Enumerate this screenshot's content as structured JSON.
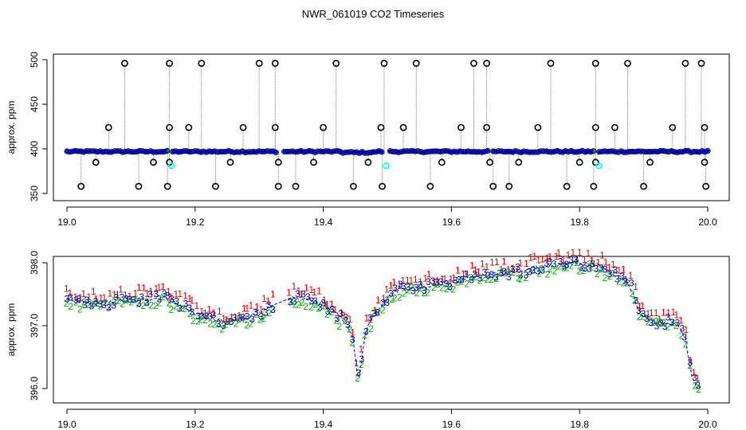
{
  "title": "NWR_061019  CO2 Timeseries",
  "chart_data": [
    {
      "type": "scatter",
      "ylabel": "approx. ppm",
      "xlim": [
        19.0,
        20.0
      ],
      "ylim": [
        345,
        500
      ],
      "xticks": [
        "19.0",
        "19.2",
        "19.4",
        "19.6",
        "19.8",
        "20.0"
      ],
      "yticks": [
        "350",
        "400",
        "450",
        "500"
      ],
      "colors": {
        "baseline": "#0000ff",
        "outline": "#000000",
        "flag": "#00ffff",
        "drop": "#909090",
        "mid": "#00a000"
      },
      "baseline_level": 397,
      "high_points": [
        [
          19.09,
          496
        ],
        [
          19.16,
          496
        ],
        [
          19.21,
          496
        ],
        [
          19.3,
          496
        ],
        [
          19.325,
          496
        ],
        [
          19.42,
          496
        ],
        [
          19.495,
          496
        ],
        [
          19.545,
          496
        ],
        [
          19.635,
          496
        ],
        [
          19.655,
          496
        ],
        [
          19.755,
          496
        ],
        [
          19.825,
          496
        ],
        [
          19.875,
          496
        ],
        [
          19.965,
          496
        ],
        [
          19.99,
          496
        ],
        [
          19.065,
          424
        ],
        [
          19.16,
          424
        ],
        [
          19.19,
          424
        ],
        [
          19.275,
          424
        ],
        [
          19.325,
          424
        ],
        [
          19.4,
          424
        ],
        [
          19.49,
          424
        ],
        [
          19.525,
          424
        ],
        [
          19.615,
          424
        ],
        [
          19.655,
          424
        ],
        [
          19.735,
          424
        ],
        [
          19.825,
          424
        ],
        [
          19.855,
          424
        ],
        [
          19.945,
          424
        ],
        [
          19.995,
          424
        ]
      ],
      "low_points": [
        [
          19.045,
          385
        ],
        [
          19.135,
          385
        ],
        [
          19.16,
          385
        ],
        [
          19.255,
          385
        ],
        [
          19.33,
          385
        ],
        [
          19.385,
          385
        ],
        [
          19.47,
          385
        ],
        [
          19.585,
          385
        ],
        [
          19.66,
          385
        ],
        [
          19.705,
          385
        ],
        [
          19.8,
          385
        ],
        [
          19.825,
          385
        ],
        [
          19.91,
          385
        ],
        [
          19.995,
          385
        ],
        [
          19.022,
          358
        ],
        [
          19.112,
          358
        ],
        [
          19.157,
          358
        ],
        [
          19.232,
          358
        ],
        [
          19.33,
          358
        ],
        [
          19.357,
          358
        ],
        [
          19.447,
          358
        ],
        [
          19.492,
          358
        ],
        [
          19.567,
          358
        ],
        [
          19.665,
          358
        ],
        [
          19.69,
          358
        ],
        [
          19.78,
          358
        ],
        [
          19.822,
          358
        ],
        [
          19.9,
          358
        ],
        [
          19.997,
          358
        ]
      ],
      "flagged_points": [
        [
          19.163,
          381
        ],
        [
          19.498,
          381
        ],
        [
          19.83,
          381
        ]
      ],
      "baseline_gaps": [
        [
          19.16,
          19.165
        ],
        [
          19.33,
          19.335
        ],
        [
          19.495,
          19.5
        ],
        [
          19.66,
          19.665
        ],
        [
          19.825,
          19.83
        ]
      ]
    },
    {
      "type": "scatter",
      "ylabel": "approx. ppm",
      "xlim": [
        19.0,
        20.0
      ],
      "ylim": [
        395.8,
        398.3
      ],
      "xticks": [
        "19.0",
        "19.2",
        "19.4",
        "19.6",
        "19.8",
        "20.0"
      ],
      "yticks": [
        "396.0",
        "397.0",
        "398.0"
      ],
      "marker_labels": [
        "1",
        "2",
        "3"
      ],
      "colors": {
        "1": "#dd0000",
        "2": "#00aa00",
        "3": "#0000aa",
        "line": "#0000ff"
      },
      "trend": [
        [
          19.0,
          397.4
        ],
        [
          19.05,
          397.35
        ],
        [
          19.1,
          397.4
        ],
        [
          19.15,
          397.45
        ],
        [
          19.2,
          397.2
        ],
        [
          19.25,
          397.05
        ],
        [
          19.3,
          397.2
        ],
        [
          19.33,
          397.35
        ],
        [
          19.36,
          397.45
        ],
        [
          19.4,
          397.35
        ],
        [
          19.43,
          397.1
        ],
        [
          19.445,
          396.9
        ],
        [
          19.455,
          396.05
        ],
        [
          19.465,
          396.9
        ],
        [
          19.48,
          397.2
        ],
        [
          19.5,
          397.45
        ],
        [
          19.52,
          397.6
        ],
        [
          19.55,
          397.6
        ],
        [
          19.6,
          397.7
        ],
        [
          19.65,
          397.8
        ],
        [
          19.7,
          397.85
        ],
        [
          19.75,
          397.95
        ],
        [
          19.8,
          398.0
        ],
        [
          19.83,
          397.95
        ],
        [
          19.86,
          397.8
        ],
        [
          19.88,
          397.6
        ],
        [
          19.895,
          397.2
        ],
        [
          19.92,
          397.05
        ],
        [
          19.95,
          397.05
        ],
        [
          19.965,
          396.8
        ],
        [
          19.975,
          396.2
        ],
        [
          19.985,
          396.0
        ]
      ]
    }
  ]
}
